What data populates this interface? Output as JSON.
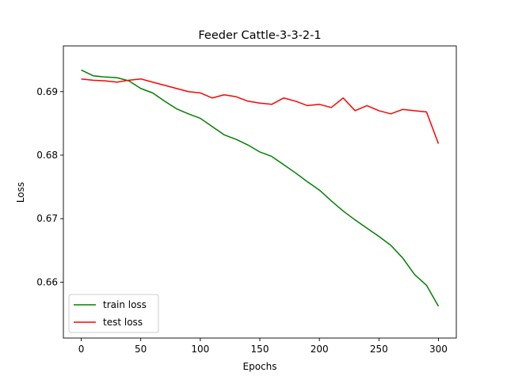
{
  "chart_data": {
    "type": "line",
    "title": "Feeder Cattle-3-3-2-1",
    "xlabel": "Epochs",
    "ylabel": "Loss",
    "xlim": [
      -15,
      315
    ],
    "ylim": [
      0.6512,
      0.6972
    ],
    "xticks": [
      0,
      50,
      100,
      150,
      200,
      250,
      300
    ],
    "yticks": [
      0.66,
      0.67,
      0.68,
      0.69
    ],
    "ytick_labels": [
      "0.66",
      "0.67",
      "0.68",
      "0.69"
    ],
    "grid": false,
    "legend": {
      "position": "lower-left"
    },
    "x": {
      "start": 0,
      "step": 10,
      "end": 300
    },
    "series": [
      {
        "name": "train loss",
        "color": "#008000",
        "values": [
          0.6934,
          0.6925,
          0.6923,
          0.6922,
          0.6917,
          0.6905,
          0.6898,
          0.6885,
          0.6873,
          0.6865,
          0.6858,
          0.6845,
          0.6832,
          0.6825,
          0.6816,
          0.6805,
          0.6798,
          0.6785,
          0.6772,
          0.6758,
          0.6745,
          0.6728,
          0.6712,
          0.6698,
          0.6685,
          0.6672,
          0.6658,
          0.6638,
          0.6612,
          0.6595,
          0.6562
        ]
      },
      {
        "name": "test loss",
        "color": "#ff0000",
        "values": [
          0.692,
          0.6918,
          0.6917,
          0.6915,
          0.6918,
          0.692,
          0.6915,
          0.691,
          0.6905,
          0.69,
          0.6898,
          0.689,
          0.6895,
          0.6892,
          0.6885,
          0.6882,
          0.688,
          0.689,
          0.6885,
          0.6878,
          0.688,
          0.6875,
          0.689,
          0.687,
          0.6878,
          0.687,
          0.6865,
          0.6872,
          0.687,
          0.6868,
          0.6818
        ]
      }
    ]
  }
}
